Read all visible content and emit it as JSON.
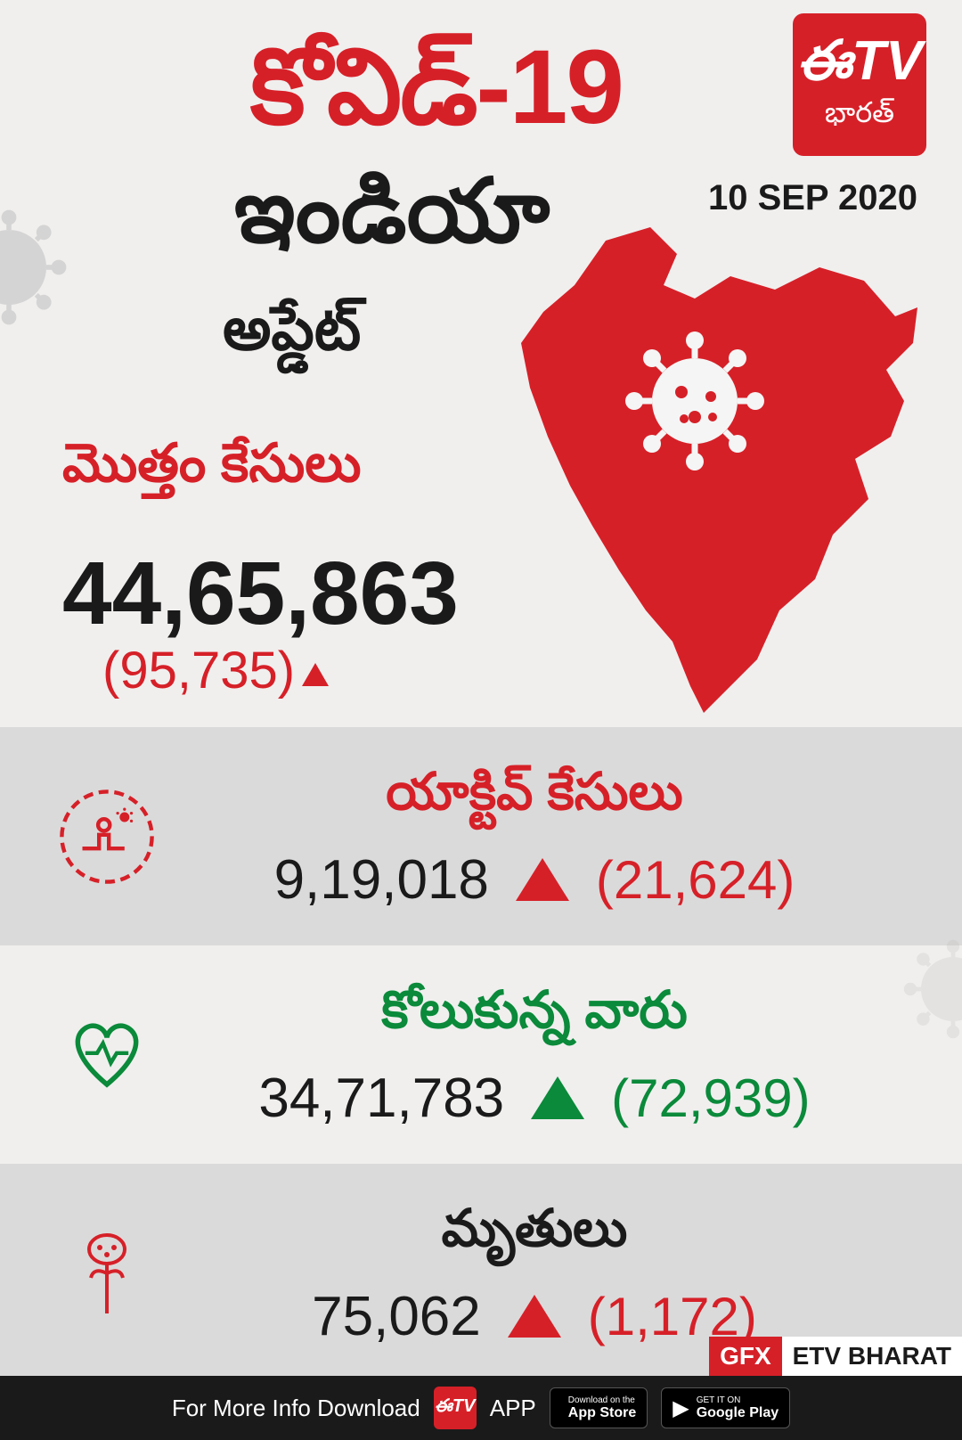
{
  "colors": {
    "red": "#d62028",
    "green": "#0a8a3a",
    "black": "#1a1a1a",
    "gray_bg": "rgba(180,180,180,0.35)"
  },
  "header": {
    "title_main": "కోవిడ్‌-19",
    "title_sub": "ఇండియా",
    "title_update": "అప్డేట్",
    "date": "10 SEP 2020",
    "logo_text": "ఈTV",
    "logo_sub": "భారత్"
  },
  "total": {
    "label": "మొత్తం కేసులు",
    "value": "44,65,863",
    "delta": "(95,735)",
    "triangle_color": "#d62028"
  },
  "stats": [
    {
      "label": "యాక్టివ్ కేసులు",
      "label_color": "#d62028",
      "value": "9,19,018",
      "delta": "(21,624)",
      "delta_color": "#d62028",
      "triangle_color": "#d62028",
      "icon": "active",
      "bg": "gray"
    },
    {
      "label": "కోలుకున్న వారు",
      "label_color": "#0a8a3a",
      "value": "34,71,783",
      "delta": "(72,939)",
      "delta_color": "#0a8a3a",
      "triangle_color": "#0a8a3a",
      "icon": "recovered",
      "bg": "white"
    },
    {
      "label": "మృతులు",
      "label_color": "#1a1a1a",
      "value": "75,062",
      "delta": "(1,172)",
      "delta_color": "#d62028",
      "triangle_color": "#d62028",
      "icon": "death",
      "bg": "gray"
    }
  ],
  "footer": {
    "text": "For More Info Download",
    "app": "APP",
    "appstore_small": "Download on the",
    "appstore_big": "App Store",
    "playstore_small": "GET IT ON",
    "playstore_big": "Google Play",
    "gfx": "GFX",
    "brand": "ETV BHARAT"
  }
}
